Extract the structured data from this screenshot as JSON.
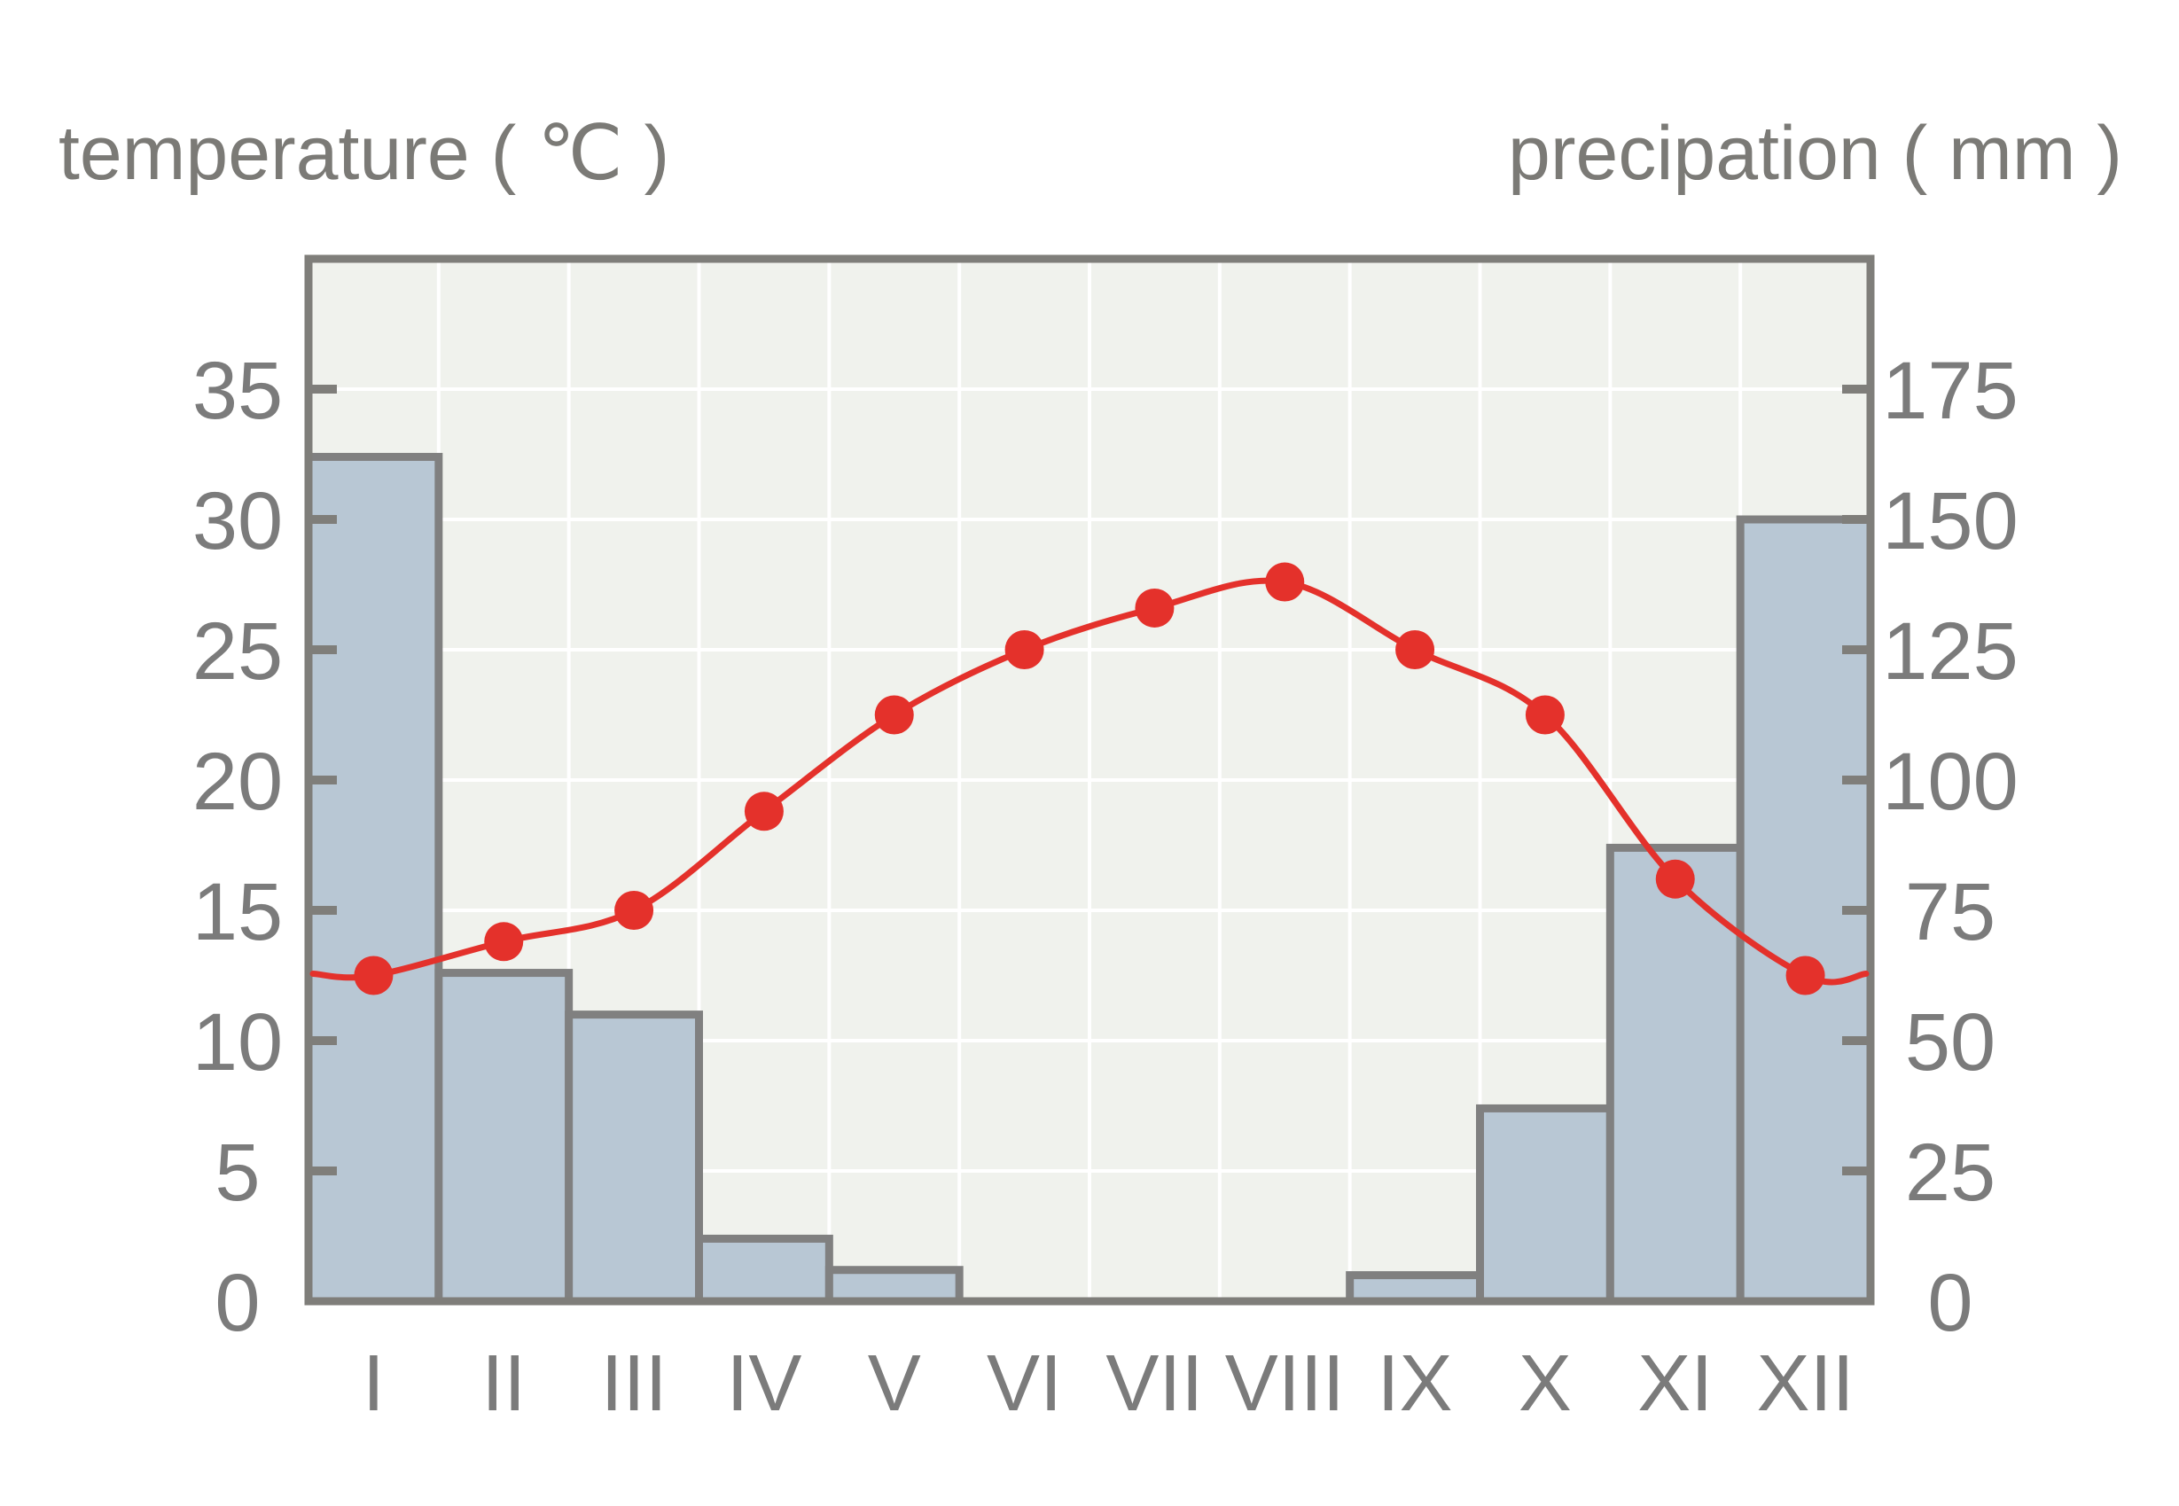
{
  "chart_data": {
    "type": "bar",
    "categories": [
      "I",
      "II",
      "III",
      "IV",
      "V",
      "VI",
      "VII",
      "VIII",
      "IX",
      "X",
      "XI",
      "XII"
    ],
    "xlabel": "",
    "ylabel": "temperature ( ℃ )",
    "ylabel_right": "precipation ( mm )",
    "ylim": [
      0,
      40
    ],
    "ylim_right": [
      0,
      200
    ],
    "yticks": [
      0,
      5,
      10,
      15,
      20,
      25,
      30,
      35
    ],
    "yticks_right": [
      0,
      25,
      50,
      75,
      100,
      125,
      150,
      175
    ],
    "grid": true,
    "series": [
      {
        "type": "bar",
        "axis": "right",
        "values": [
          162,
          63,
          55,
          12,
          6,
          0,
          0,
          0,
          5,
          37,
          87,
          150
        ]
      },
      {
        "type": "line",
        "axis": "left",
        "markers": true,
        "smooth": true,
        "values": [
          12.5,
          13.8,
          15,
          18.8,
          22.5,
          25,
          26.6,
          27.6,
          25,
          22.5,
          16.2,
          12.5
        ]
      }
    ]
  },
  "colors": {
    "plot_background": "#f0f2ed",
    "grid": "#ffffff",
    "frame": "#7f7e7a",
    "bar_fill": "#b8c7d4",
    "bar_stroke": "#808080",
    "line": "#e4312b",
    "text": "#7b7b7b"
  }
}
